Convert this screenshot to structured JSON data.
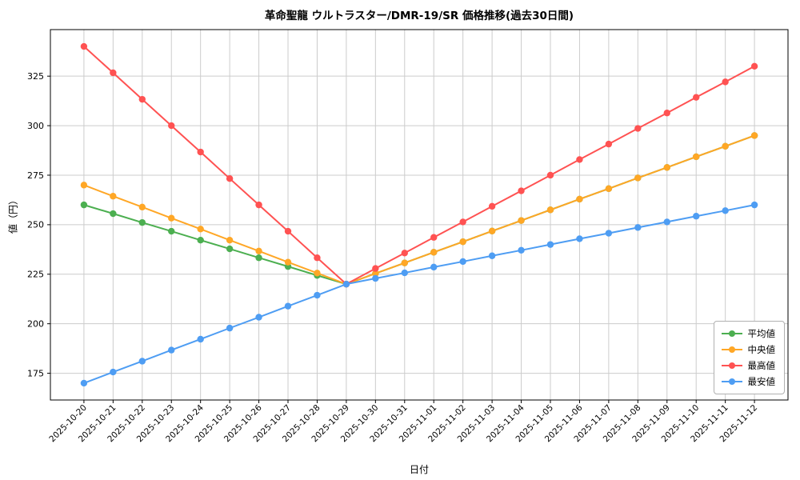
{
  "chart_data": {
    "type": "line",
    "title": "革命聖龍 ウルトラスター/DMR-19/SR 価格推移(過去30日間)",
    "xlabel": "日付",
    "ylabel": "値（円）",
    "grid": true,
    "legend_position": "lower right",
    "yticks": [
      175,
      200,
      225,
      250,
      275,
      300,
      325
    ],
    "ylim": [
      161.5,
      348.5
    ],
    "x": [
      "2025-10-20",
      "2025-10-21",
      "2025-10-22",
      "2025-10-23",
      "2025-10-24",
      "2025-10-25",
      "2025-10-26",
      "2025-10-27",
      "2025-10-28",
      "2025-10-29",
      "2025-10-30",
      "2025-10-31",
      "2025-11-01",
      "2025-11-02",
      "2025-11-03",
      "2025-11-04",
      "2025-11-05",
      "2025-11-06",
      "2025-11-07",
      "2025-11-08",
      "2025-11-09",
      "2025-11-10",
      "2025-11-11",
      "2025-11-12"
    ],
    "series": [
      {
        "name": "平均値",
        "color": "#4caf50",
        "values": [
          260.0,
          255.6,
          251.1,
          246.7,
          242.2,
          237.8,
          233.3,
          228.9,
          224.4,
          220.0,
          225.4,
          230.7,
          236.1,
          241.4,
          246.8,
          252.1,
          257.5,
          262.9,
          268.2,
          273.6,
          278.9,
          284.3,
          289.6,
          295.0
        ]
      },
      {
        "name": "中央値",
        "color": "#ffa726",
        "values": [
          270.0,
          264.4,
          258.9,
          253.3,
          247.8,
          242.2,
          236.7,
          231.1,
          225.6,
          220.0,
          225.4,
          230.7,
          236.1,
          241.4,
          246.8,
          252.1,
          257.5,
          262.9,
          268.2,
          273.6,
          278.9,
          284.3,
          289.6,
          295.0
        ]
      },
      {
        "name": "最高値",
        "color": "#ff5252",
        "values": [
          340.0,
          326.7,
          313.3,
          300.0,
          286.7,
          273.3,
          260.0,
          246.7,
          233.3,
          220.0,
          227.9,
          235.7,
          243.6,
          251.4,
          259.3,
          267.1,
          275.0,
          282.9,
          290.7,
          298.6,
          306.4,
          314.3,
          322.1,
          330.0
        ]
      },
      {
        "name": "最安値",
        "color": "#4e9df3",
        "values": [
          170.0,
          175.6,
          181.1,
          186.7,
          192.2,
          197.8,
          203.3,
          208.9,
          214.4,
          220.0,
          222.9,
          225.7,
          228.6,
          231.4,
          234.3,
          237.1,
          240.0,
          242.9,
          245.7,
          248.6,
          251.4,
          254.3,
          257.1,
          260.0
        ]
      }
    ]
  }
}
